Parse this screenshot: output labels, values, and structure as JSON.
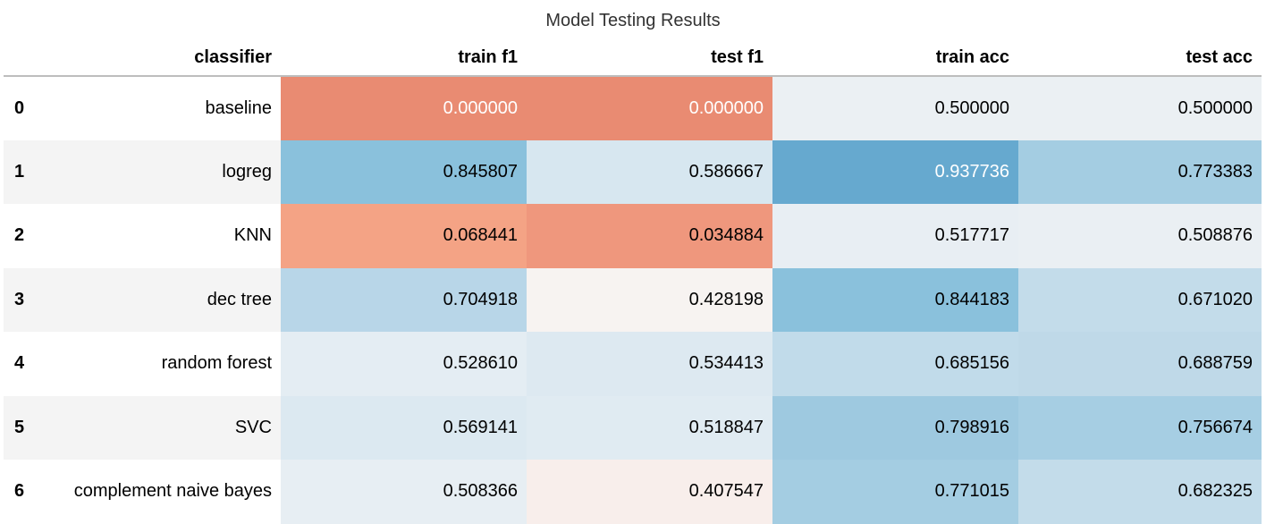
{
  "caption": "Model Testing Results",
  "index_header": "",
  "columns": [
    "classifier",
    "train f1",
    "test f1",
    "train acc",
    "test acc"
  ],
  "rows": [
    {
      "index": "0",
      "classifier": "baseline",
      "values": [
        "0.000000",
        "0.000000",
        "0.500000",
        "0.500000"
      ]
    },
    {
      "index": "1",
      "classifier": "logreg",
      "values": [
        "0.845807",
        "0.586667",
        "0.937736",
        "0.773383"
      ]
    },
    {
      "index": "2",
      "classifier": "KNN",
      "values": [
        "0.068441",
        "0.034884",
        "0.517717",
        "0.508876"
      ]
    },
    {
      "index": "3",
      "classifier": "dec tree",
      "values": [
        "0.704918",
        "0.428198",
        "0.844183",
        "0.671020"
      ]
    },
    {
      "index": "4",
      "classifier": "random forest",
      "values": [
        "0.528610",
        "0.534413",
        "0.685156",
        "0.688759"
      ]
    },
    {
      "index": "5",
      "classifier": "SVC",
      "values": [
        "0.569141",
        "0.518847",
        "0.798916",
        "0.756674"
      ]
    },
    {
      "index": "6",
      "classifier": "complement naive bayes",
      "values": [
        "0.508366",
        "0.407547",
        "0.771015",
        "0.682325"
      ]
    }
  ],
  "cell_colors": [
    [
      "#e98b72",
      "#e98b72",
      "#ebf0f3",
      "#ebf0f3"
    ],
    [
      "#8ac1dc",
      "#d7e7f0",
      "#66a9cf",
      "#a4cde2"
    ],
    [
      "#f4a385",
      "#ef977d",
      "#e8eef3",
      "#eaeff3"
    ],
    [
      "#b8d6e8",
      "#f7f3f1",
      "#8ac1dc",
      "#c3dcea"
    ],
    [
      "#e4edf3",
      "#dde9f1",
      "#c1dbea",
      "#bfd9e8"
    ],
    [
      "#dce9f1",
      "#e0ebf2",
      "#9ec9e0",
      "#a6cee3"
    ],
    [
      "#e7eef3",
      "#f8eeeb",
      "#a4cde2",
      "#c3dcea"
    ]
  ],
  "cell_text_colors": [
    [
      "#ffffff",
      "#ffffff",
      "#000000",
      "#000000"
    ],
    [
      "#000000",
      "#000000",
      "#ffffff",
      "#000000"
    ],
    [
      "#000000",
      "#000000",
      "#000000",
      "#000000"
    ],
    [
      "#000000",
      "#000000",
      "#000000",
      "#000000"
    ],
    [
      "#000000",
      "#000000",
      "#000000",
      "#000000"
    ],
    [
      "#000000",
      "#000000",
      "#000000",
      "#000000"
    ],
    [
      "#000000",
      "#000000",
      "#000000",
      "#000000"
    ]
  ],
  "chart_data": {
    "type": "table",
    "title": "Model Testing Results",
    "columns": [
      "classifier",
      "train f1",
      "test f1",
      "train acc",
      "test acc"
    ],
    "index": [
      "0",
      "1",
      "2",
      "3",
      "4",
      "5",
      "6"
    ],
    "categories": [
      "baseline",
      "logreg",
      "KNN",
      "dec tree",
      "random forest",
      "SVC",
      "complement naive bayes"
    ],
    "series": [
      {
        "name": "train f1",
        "values": [
          0.0,
          0.845807,
          0.068441,
          0.704918,
          0.52861,
          0.569141,
          0.508366
        ]
      },
      {
        "name": "test f1",
        "values": [
          0.0,
          0.586667,
          0.034884,
          0.428198,
          0.534413,
          0.518847,
          0.407547
        ]
      },
      {
        "name": "train acc",
        "values": [
          0.5,
          0.937736,
          0.517717,
          0.844183,
          0.685156,
          0.798916,
          0.771015
        ]
      },
      {
        "name": "test acc",
        "values": [
          0.5,
          0.773383,
          0.508876,
          0.67102,
          0.688759,
          0.756674,
          0.682325
        ]
      }
    ],
    "colormap": "diverging red-white-blue, centered near 0.5"
  }
}
